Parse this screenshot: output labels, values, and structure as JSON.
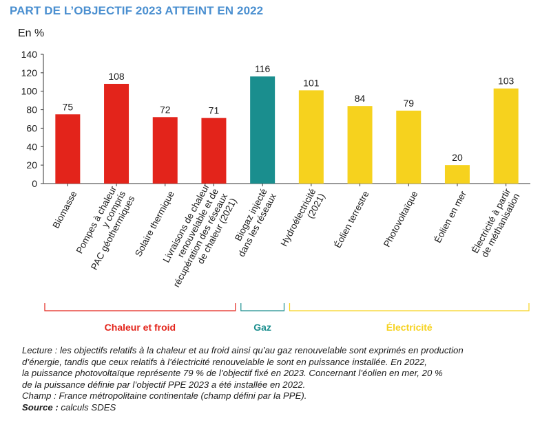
{
  "title": "PART DE L’OBJECTIF 2023 ATTEINT EN 2022",
  "unit_label": "En %",
  "chart_data": {
    "type": "bar",
    "title": "PART DE L’OBJECTIF 2023 ATTEINT EN 2022",
    "ylabel": "En %",
    "xlabel": "",
    "ylim": [
      0,
      140
    ],
    "yticks": [
      0,
      20,
      40,
      60,
      80,
      100,
      120,
      140
    ],
    "grid": false,
    "categories": [
      [
        "Biomasse"
      ],
      [
        "Pompes à chaleur",
        "y compris",
        "PAC géothermiques"
      ],
      [
        "Solaire thermique"
      ],
      [
        "Livraisons de chaleur",
        "renouvelable et de",
        "récupération des réseaux",
        "de chaleur (2021)"
      ],
      [
        "Biogaz injecté",
        "dans les réseaux"
      ],
      [
        "Hydroélectricité",
        "(2021)"
      ],
      [
        "Éolien terrestre"
      ],
      [
        "Photovoltaïque"
      ],
      [
        "Éolien en mer"
      ],
      [
        "Électricité à partir",
        "de méthanisation"
      ]
    ],
    "values": [
      75,
      108,
      72,
      71,
      116,
      101,
      84,
      79,
      20,
      103
    ],
    "value_labels": [
      "75",
      "108",
      "72",
      "71",
      "116",
      "101",
      "84",
      "79",
      "20",
      "103"
    ],
    "groups": [
      {
        "name": "Chaleur et froid",
        "first": 0,
        "last": 3,
        "color": "#e3241b"
      },
      {
        "name": "Gaz",
        "first": 4,
        "last": 4,
        "color": "#1a8e8e"
      },
      {
        "name": "Électricité",
        "first": 5,
        "last": 9,
        "color": "#f6d21e"
      }
    ]
  },
  "notes": {
    "lines": [
      "Lecture : les objectifs relatifs à la chaleur et au froid ainsi qu’au gaz renouvelable sont exprimés en production",
      "d’énergie, tandis que ceux relatifs à l’électricité renouvelable le sont en puissance installée. En 2022,",
      "la puissance photovoltaïque représente 79 % de l’objectif fixé en 2023. Concernant l’éolien en mer, 20 %",
      "de la puissance définie par l’objectif PPE 2023 a été installée en 2022.",
      "Champ : France métropolitaine continentale (champ défini par la PPE)."
    ],
    "source_label": "Source :",
    "source_text": " calculs SDES"
  }
}
